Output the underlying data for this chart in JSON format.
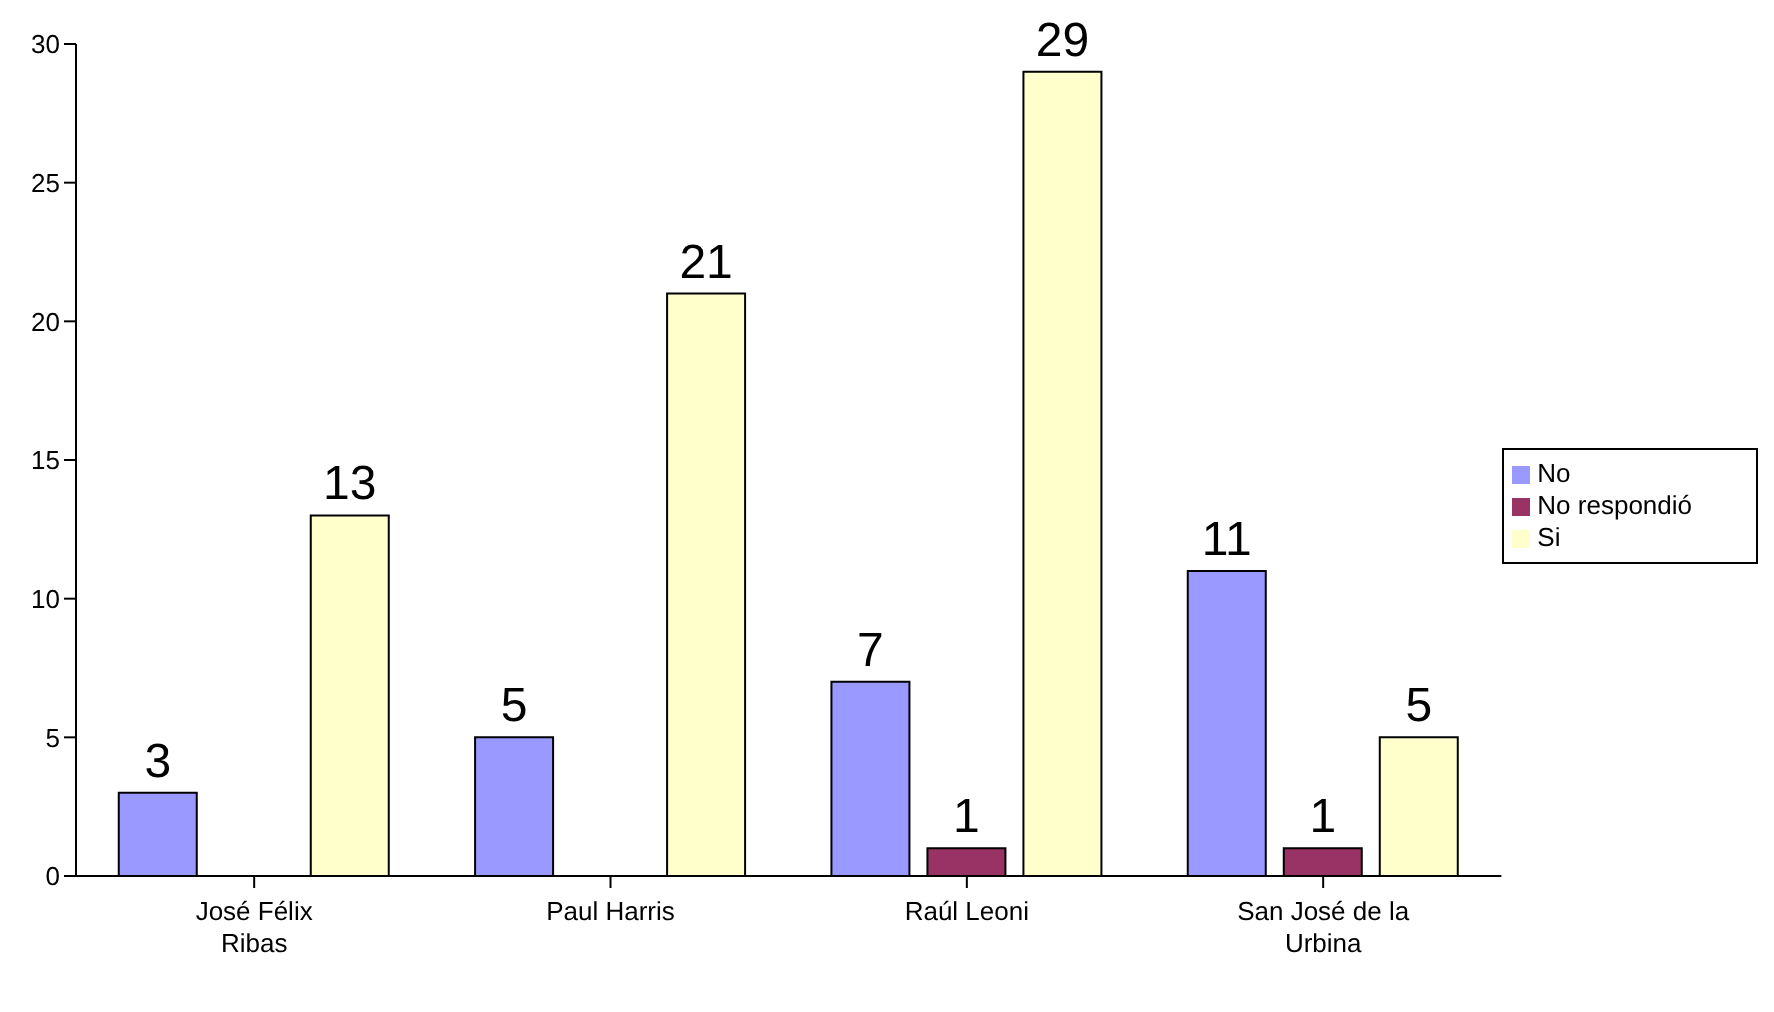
{
  "chart_data": {
    "type": "bar",
    "categories": [
      "José Félix Ribas",
      "Paul Harris",
      "Raúl Leoni",
      "San José de la Urbina"
    ],
    "series": [
      {
        "name": "No",
        "color": "#9999ff",
        "values": [
          3,
          5,
          7,
          11
        ]
      },
      {
        "name": "No respondió",
        "color": "#993366",
        "values": [
          null,
          null,
          1,
          1
        ]
      },
      {
        "name": "Si",
        "color": "#ffffcc",
        "values": [
          13,
          21,
          29,
          5
        ]
      }
    ],
    "ylim": [
      0,
      30
    ],
    "yticks": [
      0,
      5,
      10,
      15,
      20,
      25,
      30
    ],
    "grid": false,
    "legend": "right",
    "data_labels": true
  }
}
